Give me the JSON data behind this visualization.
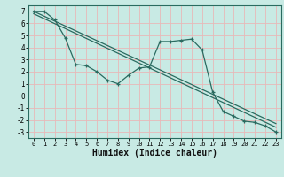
{
  "xlabel": "Humidex (Indice chaleur)",
  "bg_color": "#c8eae4",
  "grid_color": "#e8b8b8",
  "line_color": "#2a6b60",
  "xlim": [
    -0.5,
    23.5
  ],
  "ylim": [
    -3.5,
    7.5
  ],
  "xticks": [
    0,
    1,
    2,
    3,
    4,
    5,
    6,
    7,
    8,
    9,
    10,
    11,
    12,
    13,
    14,
    15,
    16,
    17,
    18,
    19,
    20,
    21,
    22,
    23
  ],
  "yticks": [
    -3,
    -2,
    -1,
    0,
    1,
    2,
    3,
    4,
    5,
    6,
    7
  ],
  "line1_x": [
    0,
    1,
    2,
    3,
    4,
    5,
    6,
    7,
    8,
    9,
    10,
    11,
    12,
    13,
    14,
    15,
    16,
    17,
    18,
    19,
    20,
    21,
    22,
    23
  ],
  "line1_y": [
    7.0,
    7.0,
    6.3,
    4.8,
    2.6,
    2.5,
    2.0,
    1.3,
    1.0,
    1.7,
    2.3,
    2.4,
    4.5,
    4.5,
    4.6,
    4.7,
    3.8,
    0.3,
    -1.3,
    -1.7,
    -2.1,
    -2.2,
    -2.5,
    -3.0
  ],
  "line2_x": [
    0,
    23
  ],
  "line2_y": [
    7.0,
    -2.3
  ],
  "line3_x": [
    0,
    23
  ],
  "line3_y": [
    6.8,
    -2.6
  ]
}
